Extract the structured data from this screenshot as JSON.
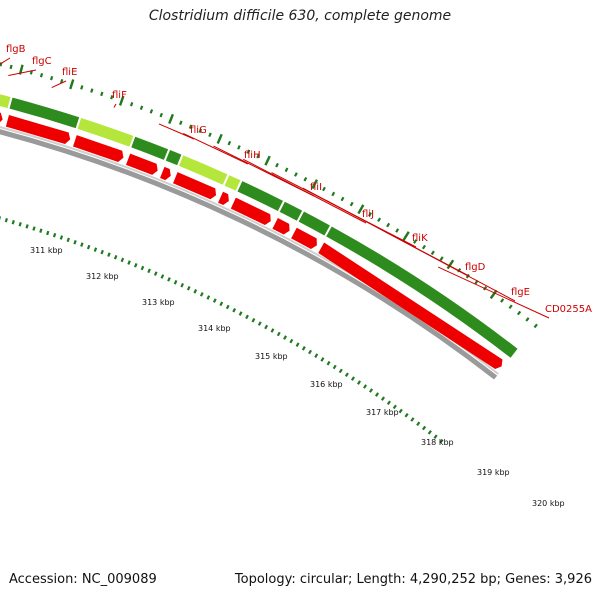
{
  "title": "Clostridium difficile 630, complete genome",
  "footer": {
    "accession": "Accession: NC_009089",
    "summary": "Topology: circular; Length: 4,290,252 bp; Genes: 3,926"
  },
  "colors": {
    "gene_label": "#cc0000",
    "cds_dark": "#2e8b1e",
    "cds_light": "#b4e63c",
    "arrow": "#ee0000",
    "backbone": "#9a9a9a",
    "tick": "#1f7a1f"
  },
  "scale": {
    "unit": "kbp",
    "ticks": [
      {
        "kbp": 311,
        "label": "311 kbp"
      },
      {
        "kbp": 312,
        "label": "312 kbp"
      },
      {
        "kbp": 313,
        "label": "313 kbp"
      },
      {
        "kbp": 314,
        "label": "314 kbp"
      },
      {
        "kbp": 315,
        "label": "315 kbp"
      },
      {
        "kbp": 316,
        "label": "316 kbp"
      },
      {
        "kbp": 317,
        "label": "317 kbp"
      },
      {
        "kbp": 318,
        "label": "318 kbp"
      },
      {
        "kbp": 319,
        "label": "319 kbp"
      },
      {
        "kbp": 320,
        "label": "320 kbp"
      }
    ]
  },
  "genes": [
    {
      "name": "flgB"
    },
    {
      "name": "flgC"
    },
    {
      "name": "fliE"
    },
    {
      "name": "fliF"
    },
    {
      "name": "fliG"
    },
    {
      "name": "fliH"
    },
    {
      "name": "fliI"
    },
    {
      "name": "fliJ"
    },
    {
      "name": "fliK"
    },
    {
      "name": "flgD"
    },
    {
      "name": "flgE"
    },
    {
      "name": "CD0255A"
    }
  ]
}
